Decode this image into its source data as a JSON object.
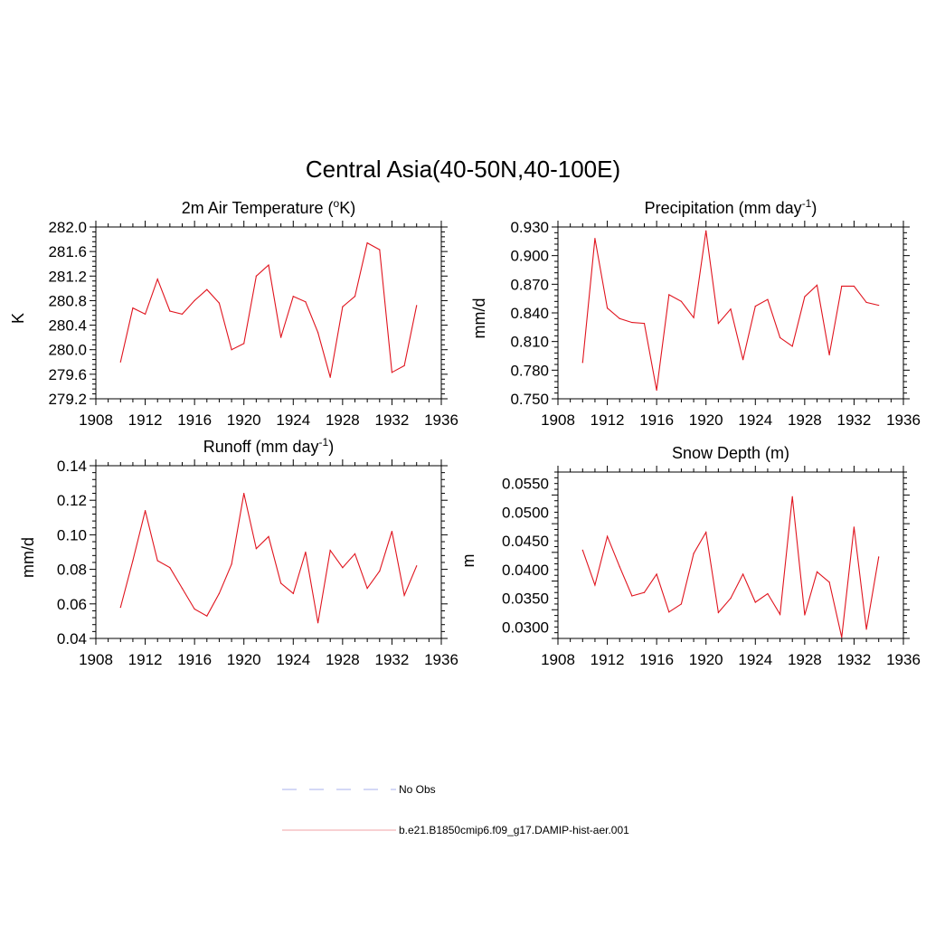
{
  "title": "Central Asia(40-50N,40-100E)",
  "chart_data": [
    {
      "type": "line",
      "title": "2m Air Temperature (°K)",
      "title_parts": {
        "pre": "2m Air Temperature (",
        "sup": "o",
        "post": "K)"
      },
      "ylabel": "K",
      "xlim": [
        1908,
        1936
      ],
      "ylim": [
        279.2,
        282.0
      ],
      "x_ticks": [
        "1908",
        "1912",
        "1916",
        "1920",
        "1924",
        "1928",
        "1932",
        "1936"
      ],
      "y_ticks": [
        "279.2",
        "279.6",
        "280.0",
        "280.4",
        "280.8",
        "281.2",
        "281.6",
        "282.0"
      ],
      "x": [
        1910,
        1911,
        1912,
        1913,
        1914,
        1915,
        1916,
        1917,
        1918,
        1919,
        1920,
        1921,
        1922,
        1923,
        1924,
        1925,
        1926,
        1927,
        1928,
        1929,
        1930,
        1931,
        1932,
        1933,
        1934
      ],
      "series": [
        {
          "values": [
            279.8,
            280.68,
            280.58,
            281.15,
            280.63,
            280.58,
            280.8,
            280.98,
            280.76,
            280.0,
            280.1,
            281.2,
            281.38,
            280.2,
            280.87,
            280.78,
            280.28,
            279.55,
            280.7,
            280.87,
            281.74,
            281.63,
            279.63,
            279.74,
            280.72
          ]
        }
      ]
    },
    {
      "type": "line",
      "title": "Precipitation (mm day-1)",
      "title_parts": {
        "pre": "Precipitation (mm day",
        "sup": "-1",
        "post": ")"
      },
      "ylabel": "mm/d",
      "xlim": [
        1908,
        1936
      ],
      "ylim": [
        0.75,
        0.93
      ],
      "x_ticks": [
        "1908",
        "1912",
        "1916",
        "1920",
        "1924",
        "1928",
        "1932",
        "1936"
      ],
      "y_ticks": [
        "0.750",
        "0.780",
        "0.810",
        "0.840",
        "0.870",
        "0.900",
        "0.930"
      ],
      "x": [
        1910,
        1911,
        1912,
        1913,
        1914,
        1915,
        1916,
        1917,
        1918,
        1919,
        1920,
        1921,
        1922,
        1923,
        1924,
        1925,
        1926,
        1927,
        1928,
        1929,
        1930,
        1931,
        1932,
        1933,
        1934
      ],
      "series": [
        {
          "values": [
            0.788,
            0.918,
            0.845,
            0.834,
            0.83,
            0.829,
            0.759,
            0.859,
            0.852,
            0.835,
            0.926,
            0.829,
            0.844,
            0.791,
            0.847,
            0.854,
            0.814,
            0.805,
            0.857,
            0.869,
            0.796,
            0.868,
            0.868,
            0.851,
            0.848
          ]
        }
      ]
    },
    {
      "type": "line",
      "title": "Runoff (mm day-1)",
      "title_parts": {
        "pre": "Runoff (mm day",
        "sup": "-1",
        "post": ")"
      },
      "ylabel": "mm/d",
      "xlim": [
        1908,
        1936
      ],
      "ylim": [
        0.04,
        0.14
      ],
      "x_ticks": [
        "1908",
        "1912",
        "1916",
        "1920",
        "1924",
        "1928",
        "1932",
        "1936"
      ],
      "y_ticks": [
        "0.04",
        "0.06",
        "0.08",
        "0.10",
        "0.12",
        "0.14"
      ],
      "x": [
        1910,
        1911,
        1912,
        1913,
        1914,
        1915,
        1916,
        1917,
        1918,
        1919,
        1920,
        1921,
        1922,
        1923,
        1924,
        1925,
        1926,
        1927,
        1928,
        1929,
        1930,
        1931,
        1932,
        1933,
        1934
      ],
      "series": [
        {
          "values": [
            0.058,
            0.085,
            0.114,
            0.085,
            0.081,
            0.069,
            0.057,
            0.053,
            0.066,
            0.083,
            0.124,
            0.092,
            0.099,
            0.072,
            0.066,
            0.09,
            0.049,
            0.091,
            0.081,
            0.089,
            0.069,
            0.079,
            0.102,
            0.065,
            0.082
          ]
        }
      ]
    },
    {
      "type": "line",
      "title": "Snow Depth (m)",
      "title_parts": {
        "pre": "Snow Depth (m)",
        "sup": "",
        "post": ""
      },
      "ylabel": "m",
      "xlim": [
        1908,
        1936
      ],
      "ylim": [
        0.028,
        0.057
      ],
      "x_ticks": [
        "1908",
        "1912",
        "1916",
        "1920",
        "1924",
        "1928",
        "1932",
        "1936"
      ],
      "y_ticks": [
        "0.0300",
        "0.0350",
        "0.0400",
        "0.0450",
        "0.0500",
        "0.0550"
      ],
      "x": [
        1910,
        1911,
        1912,
        1913,
        1914,
        1915,
        1916,
        1917,
        1918,
        1919,
        1920,
        1921,
        1922,
        1923,
        1924,
        1925,
        1926,
        1927,
        1928,
        1929,
        1930,
        1931,
        1932,
        1933,
        1934
      ],
      "series": [
        {
          "values": [
            0.0434,
            0.0373,
            0.0458,
            0.0405,
            0.0354,
            0.036,
            0.0392,
            0.0326,
            0.034,
            0.0428,
            0.0465,
            0.0325,
            0.035,
            0.0392,
            0.0343,
            0.0358,
            0.0322,
            0.0527,
            0.0321,
            0.0396,
            0.0378,
            0.0282,
            0.0474,
            0.0296,
            0.0422
          ]
        }
      ]
    }
  ],
  "legend": [
    {
      "label": "No Obs",
      "style": "dashed",
      "color": "#aab0ee"
    },
    {
      "label": "b.e21.B1850cmip6.f09_g17.DAMIP-hist-aer.001",
      "style": "solid",
      "color": "#f2a0a6"
    }
  ],
  "colors": {
    "series": "#e0141e"
  }
}
